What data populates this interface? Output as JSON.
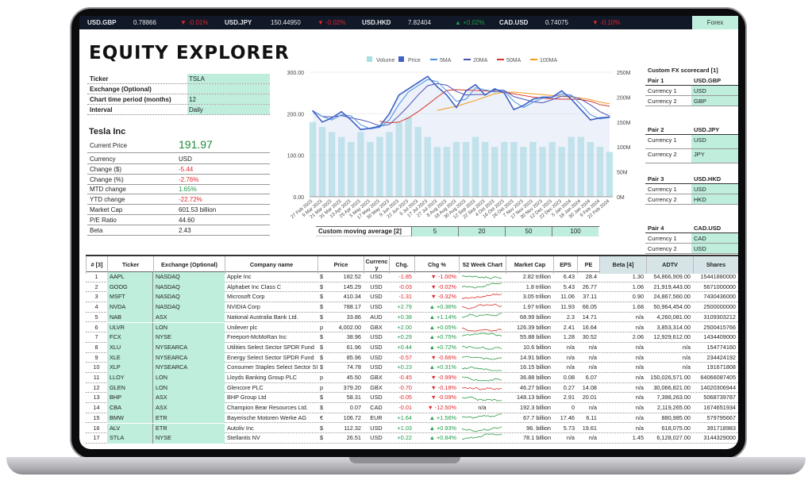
{
  "ticker_bar": [
    {
      "pair": "USD.GBP",
      "rate": "0.78866",
      "change": "-0.01%",
      "dir": "down"
    },
    {
      "pair": "USD.JPY",
      "rate": "150.44950",
      "change": "-0.02%",
      "dir": "down"
    },
    {
      "pair": "USD.HKD",
      "rate": "7.82404",
      "change": "+0.02%",
      "dir": "up"
    },
    {
      "pair": "CAD.USD",
      "rate": "0.74075",
      "change": "-0.10%",
      "dir": "down"
    }
  ],
  "forex_tab": "Forex",
  "title": "EQUITY EXPLORER",
  "inputs": [
    {
      "label": "Ticker",
      "value": "TSLA"
    },
    {
      "label": "Exchange (Optional)",
      "value": ""
    },
    {
      "label": "Chart time period (months)",
      "value": "12"
    },
    {
      "label": "Interval",
      "value": "Daily"
    }
  ],
  "company": {
    "name": "Tesla Inc",
    "current_price_label": "Current Price",
    "current_price": "191.97",
    "stats": [
      {
        "label": "Currency",
        "value": "USD",
        "tone": ""
      },
      {
        "label": "Change ($)",
        "value": "-5.44",
        "tone": "dn"
      },
      {
        "label": "Change (%)",
        "value": "-2.76%",
        "tone": "dn"
      },
      {
        "label": "MTD change",
        "value": "1.65%",
        "tone": "up"
      },
      {
        "label": "YTD change",
        "value": "-22.72%",
        "tone": "dn"
      },
      {
        "label": "Market Cap",
        "value": "601.53 billion",
        "tone": ""
      },
      {
        "label": "P/E Ratio",
        "value": "44.60",
        "tone": ""
      },
      {
        "label": "Beta",
        "value": "2.43",
        "tone": ""
      }
    ]
  },
  "fx_scorecard": {
    "title": "Custom FX scorecard [1]",
    "pairs": [
      {
        "label": "Pair 1",
        "pair": "USD.GBP",
        "c1": "USD",
        "c2": "GBP"
      },
      {
        "label": "Pair 2",
        "pair": "USD.JPY",
        "c1": "USD",
        "c2": "JPY"
      },
      {
        "label": "Pair 3",
        "pair": "USD.HKD",
        "c1": "USD",
        "c2": "HKD"
      },
      {
        "label": "Pair 4",
        "pair": "CAD.USD",
        "c1": "CAD",
        "c2": "USD"
      }
    ],
    "c1_label": "Currency 1",
    "c2_label": "Currency 2"
  },
  "moving_average": {
    "label": "Custom moving average [2]",
    "values": [
      "5",
      "20",
      "50",
      "100"
    ]
  },
  "chart_data": {
    "type": "bar+line",
    "legend": [
      "Volume",
      "Price",
      "5MA",
      "20MA",
      "50MA",
      "100MA"
    ],
    "legend_placement": "top",
    "colors": {
      "Volume": "#a8dfe0",
      "Price": "#3f62c4",
      "5MA": "#4a8fe0",
      "20MA": "#4b4fb8",
      "50MA": "#d8342c",
      "100MA": "#f59b1c"
    },
    "y_left": {
      "ticks": [
        "0.00",
        "100.00",
        "200.00",
        "300.00"
      ],
      "range": [
        0,
        300
      ]
    },
    "y_right": {
      "ticks": [
        "0M",
        "50M",
        "100M",
        "150M",
        "200M",
        "250M"
      ],
      "range": [
        0,
        250
      ]
    },
    "x": [
      "27 Feb 2023",
      "9 Mar 2023",
      "21 Mar 2023",
      "31 Mar 2023",
      "13 Apr 2023",
      "25 Apr 2023",
      "5 May 2023",
      "17 May 2023",
      "30 May 2023",
      "9 Jun 2023",
      "22 Jun 2023",
      "5 Jul 2023",
      "17 Jul 2023",
      "27 Jul 2023",
      "8 Aug 2023",
      "18 Aug 2023",
      "30 Aug 2023",
      "12 Sep 2023",
      "22 Sep 2023",
      "4 Oct 2023",
      "16 Oct 2023",
      "26 Oct 2023",
      "7 Nov 2023",
      "17 Nov 2023",
      "30 Nov 2023",
      "12 Dec 2023",
      "22 Dec 2023",
      "5 Jan 2024",
      "18 Jan 2024",
      "30 Jan 2024",
      "9 Feb 2024",
      "22 Feb 2024"
    ],
    "price": [
      207,
      180,
      190,
      205,
      185,
      162,
      165,
      170,
      200,
      245,
      260,
      275,
      290,
      265,
      245,
      215,
      255,
      270,
      245,
      260,
      250,
      210,
      220,
      235,
      240,
      240,
      255,
      235,
      210,
      185,
      190,
      192
    ],
    "volume_m": [
      150,
      140,
      130,
      120,
      110,
      130,
      110,
      120,
      130,
      150,
      160,
      140,
      120,
      100,
      100,
      110,
      110,
      120,
      110,
      100,
      110,
      110,
      100,
      110,
      100,
      110,
      100,
      120,
      120,
      110,
      100,
      90
    ],
    "ma50": [
      null,
      null,
      null,
      null,
      null,
      null,
      null,
      182,
      178,
      180,
      190,
      205,
      222,
      240,
      256,
      258,
      257,
      256,
      255,
      254,
      252,
      248,
      244,
      240,
      238,
      236,
      235,
      235,
      234,
      230,
      222,
      218
    ],
    "ma100": [
      null,
      null,
      null,
      null,
      null,
      null,
      null,
      null,
      null,
      null,
      null,
      null,
      null,
      208,
      213,
      218,
      225,
      232,
      240,
      248,
      252,
      252,
      250,
      248,
      246,
      244,
      242,
      240,
      238,
      234,
      228,
      224
    ]
  },
  "table": {
    "headers": [
      "# [3]",
      "Ticker",
      "Exchange (Optional)",
      "Company name",
      "Price",
      "Currency",
      "Chg.",
      "Chg %",
      "52 Week Chart",
      "Market Cap",
      "EPS",
      "PE",
      "Beta [4]",
      "ADTV",
      "Shares"
    ],
    "rows": [
      [
        "1",
        "AAPL",
        "NASDAQ",
        "Apple Inc",
        "$",
        "182.52",
        "USD",
        "-1.85",
        "-1.00%",
        "up",
        "2.82 trillion",
        "6.43",
        "28.4",
        "1.30",
        "54,866,909.00",
        "15441880000"
      ],
      [
        "2",
        "GOOG",
        "NASDAQ",
        "Alphabet Inc Class C",
        "$",
        "145.29",
        "USD",
        "-0.03",
        "-0.02%",
        "up",
        "1.8 trillion",
        "5.43",
        "26.77",
        "1.06",
        "21,919,443.00",
        "5671000000"
      ],
      [
        "3",
        "MSFT",
        "NASDAQ",
        "Microsoft Corp",
        "$",
        "410.34",
        "USD",
        "-1.31",
        "-0.32%",
        "down",
        "3.05 trillion",
        "11.06",
        "37.11",
        "0.90",
        "24,867,560.00",
        "7430436000"
      ],
      [
        "4",
        "NVDA",
        "NASDAQ",
        "NVIDIA Corp",
        "$",
        "788.17",
        "USD",
        "+2.79",
        "+0.36%",
        "down",
        "1.97 trillion",
        "11.93",
        "66.05",
        "1.68",
        "50,964,454.00",
        "2500000000"
      ],
      [
        "5",
        "NAB",
        "ASX",
        "National Australia Bank Ltd.",
        "$",
        "33.86",
        "AUD",
        "+0.38",
        "+1.14%",
        "up",
        "68.99 billion",
        "2.3",
        "14.71",
        "n/a",
        "4,260,081.00",
        "3109303212"
      ],
      [
        "6",
        "ULVR",
        "LON",
        "Unilever plc",
        "p",
        "4,002.00",
        "GBX",
        "+2.00",
        "+0.05%",
        "down",
        "126.39 billion",
        "2.41",
        "16.64",
        "n/a",
        "3,853,314.00",
        "2500415766"
      ],
      [
        "7",
        "FCX",
        "NYSE",
        "Freeport-McMoRan Inc",
        "$",
        "38.96",
        "USD",
        "+0.29",
        "+0.75%",
        "up",
        "55.88 billion",
        "1.28",
        "30.52",
        "2.06",
        "12,929,612.00",
        "1434409000"
      ],
      [
        "8",
        "XLU",
        "NYSEARCA",
        "Utilities Select Sector SPDR Fund",
        "$",
        "61.96",
        "USD",
        "+0.44",
        "+0.72%",
        "up",
        "10.6 billion",
        "n/a",
        "n/a",
        "n/a",
        "n/a",
        "154774160"
      ],
      [
        "9",
        "XLE",
        "NYSEARCA",
        "Energy Select Sector SPDR Fund",
        "$",
        "85.96",
        "USD",
        "-0.57",
        "-0.66%",
        "up",
        "14.91 billion",
        "n/a",
        "n/a",
        "n/a",
        "n/a",
        "234424192"
      ],
      [
        "10",
        "XLP",
        "NYSEARCA",
        "Consumer Staples Select Sector SI",
        "$",
        "74.78",
        "USD",
        "+0.23",
        "+0.31%",
        "up",
        "16.15 billion",
        "n/a",
        "n/a",
        "n/a",
        "n/a",
        "191671808"
      ],
      [
        "11",
        "LLOY",
        "LON",
        "Lloyds Banking Group PLC",
        "p",
        "45.50",
        "GBX",
        "-0.45",
        "-0.99%",
        "up",
        "36.88 billion",
        "0.08",
        "6.07",
        "n/a",
        "150,026,571.00",
        "64066087405"
      ],
      [
        "12",
        "GLEN",
        "LON",
        "Glencore PLC",
        "p",
        "379.20",
        "GBX",
        "-0.70",
        "-0.18%",
        "down",
        "46.27 billion",
        "0.27",
        "14.08",
        "n/a",
        "30,066,821.00",
        "14020306944"
      ],
      [
        "13",
        "BHP",
        "ASX",
        "BHP Group Ltd",
        "$",
        "58.31",
        "USD",
        "-0.05",
        "-0.09%",
        "up",
        "148.13 billion",
        "2.91",
        "20.01",
        "n/a",
        "7,398,263.00",
        "5068739787"
      ],
      [
        "14",
        "CBA",
        "ASX",
        "Champion Bear Resources Ltd.",
        "$",
        "0.07",
        "CAD",
        "-0.01",
        "-12.50%",
        "n/a",
        "192.3 billion",
        "0",
        "n/a",
        "n/a",
        "2,119,265.00",
        "1674651934"
      ],
      [
        "15",
        "BMW",
        "ETR",
        "Bayerische Motoren Werke AG",
        "€",
        "106.72",
        "EUR",
        "+1.64",
        "+1.56%",
        "up",
        "67.7 billion",
        "17.46",
        "6.11",
        "n/a",
        "880,985.00",
        "579795667"
      ],
      [
        "16",
        "ALV",
        "ETR",
        "Autoliv Inc",
        "$",
        "112.32",
        "USD",
        "+1.03",
        "+0.93%",
        "up",
        "96. billion",
        "5.73",
        "19.61",
        "n/a",
        "618,075.00",
        "391718983"
      ],
      [
        "17",
        "STLA",
        "NYSE",
        "Stellantis NV",
        "$",
        "26.51",
        "USD",
        "+0.22",
        "+0.84%",
        "up",
        "78.1 billion",
        "n/a",
        "n/a",
        "1.45",
        "6,128,027.00",
        "3144329000"
      ]
    ]
  },
  "colors": {
    "accent_mint": "#bfeedd",
    "up": "#1f9a45",
    "down": "#e0262c",
    "topbar": "#111827"
  }
}
